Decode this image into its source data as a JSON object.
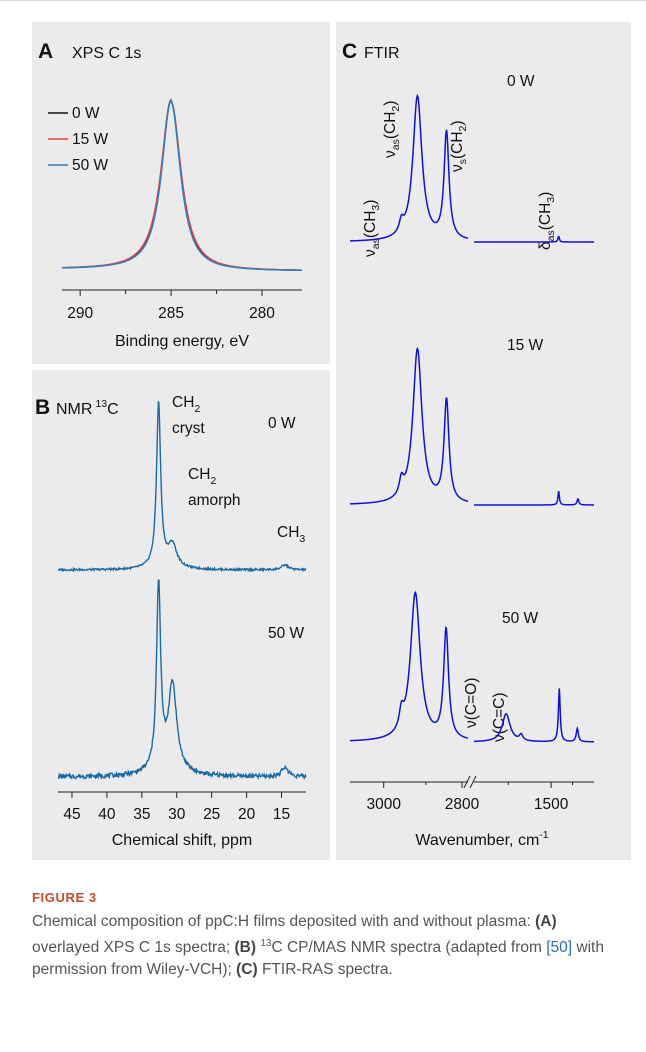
{
  "caption": {
    "label": "FIGURE 3",
    "intro": "Chemical composition of ppC:H films deposited with and without plasma: ",
    "a_tag": "(A)",
    "a_text": " overlayed XPS C 1s spectra; ",
    "b_tag": "(B)",
    "b_sup": "13",
    "b_text": "C CP/MAS NMR spectra (adapted from ",
    "b_ref": "[50]",
    "b_text2": " with permission from Wiley-VCH); ",
    "c_tag": "(C)",
    "c_text": " FTIR-RAS spectra."
  },
  "colors": {
    "panel_bg": "#ebebeb",
    "xps_0W": "#111111",
    "xps_15W": "#e8413a",
    "xps_50W": "#2f7ec4",
    "nmr_line": "#1a6aa5",
    "ftir_line": "#1010e0"
  },
  "chart_data": [
    {
      "panel": "A",
      "type": "line",
      "title": "XPS C 1s",
      "xlabel": "Binding energy, eV",
      "x_reversed": true,
      "xlim": [
        291,
        277.8
      ],
      "xticks": [
        290,
        285,
        280
      ],
      "legend": {
        "placement": "top-left",
        "entries": [
          "0 W",
          "15 W",
          "50 W"
        ]
      },
      "series": [
        {
          "name": "0 W",
          "peak_x": 285.0,
          "fwhm": 1.4,
          "color": "#111111"
        },
        {
          "name": "15 W",
          "peak_x": 285.0,
          "fwhm": 1.45,
          "color": "#e8413a"
        },
        {
          "name": "50 W",
          "peak_x": 285.0,
          "fwhm": 1.35,
          "color": "#2f7ec4"
        }
      ]
    },
    {
      "panel": "B",
      "type": "line",
      "title": "NMR",
      "title_sup": "13",
      "title_suffix": "C",
      "xlabel": "Chemical shift, ppm",
      "x_reversed": true,
      "xlim": [
        47,
        11.5
      ],
      "xticks": [
        45,
        40,
        35,
        30,
        25,
        20,
        15
      ],
      "annotations": [
        {
          "lines": [
            "CH",
            "cryst"
          ],
          "sub": "2"
        },
        {
          "lines": [
            "CH",
            "amorph"
          ],
          "sub": "2"
        },
        {
          "text": "CH",
          "sub": "3"
        }
      ],
      "series": [
        {
          "name": "0 W",
          "peaks": [
            {
              "x": 32.6,
              "rel": 1.0
            },
            {
              "x": 30.6,
              "rel": 0.13
            },
            {
              "x": 14.5,
              "rel": 0.03
            }
          ]
        },
        {
          "name": "50 W",
          "peaks": [
            {
              "x": 32.6,
              "rel": 1.0
            },
            {
              "x": 30.6,
              "rel": 0.46
            },
            {
              "x": 14.5,
              "rel": 0.05
            }
          ]
        }
      ]
    },
    {
      "panel": "C",
      "type": "line",
      "title": "FTIR",
      "xlabel": "Wavenumber, cm",
      "xlabel_sup": "-1",
      "x_broken": true,
      "xlim_left": [
        3080,
        2800
      ],
      "xlim_right": [
        1860,
        1300
      ],
      "xticks": [
        3000,
        2800,
        1500
      ],
      "annotations": [
        {
          "base": "ν",
          "sub": "as",
          "rest": "(CH",
          "sub2": "3",
          "end": ")"
        },
        {
          "base": "ν",
          "sub": "as",
          "rest": "(CH",
          "sub2": "2",
          "end": ")"
        },
        {
          "base": "ν",
          "sub": "s",
          "rest": "(CH",
          "sub2": "2",
          "end": ")"
        },
        {
          "base": "δ",
          "sub": "as",
          "rest": "(CH",
          "sub2": "3",
          "end": ")"
        },
        {
          "text": "ν(C=O)"
        },
        {
          "text": "ν(C=C)"
        }
      ],
      "series": [
        {
          "name": "0 W",
          "peaks": [
            {
              "x": 2958,
              "rel": 0.08
            },
            {
              "x": 2920,
              "rel": 1.0
            },
            {
              "x": 2851,
              "rel": 0.74
            },
            {
              "x": 1465,
              "rel": 0.04
            }
          ]
        },
        {
          "name": "15 W",
          "peaks": [
            {
              "x": 2958,
              "rel": 0.1
            },
            {
              "x": 2920,
              "rel": 1.0
            },
            {
              "x": 2851,
              "rel": 0.66
            },
            {
              "x": 1465,
              "rel": 0.09
            },
            {
              "x": 1375,
              "rel": 0.04
            }
          ]
        },
        {
          "name": "50 W",
          "peaks": [
            {
              "x": 2958,
              "rel": 0.12
            },
            {
              "x": 2925,
              "rel": 1.0
            },
            {
              "x": 2852,
              "rel": 0.74
            },
            {
              "x": 1710,
              "rel": 0.19
            },
            {
              "x": 1640,
              "rel": 0.04
            },
            {
              "x": 1462,
              "rel": 0.36
            },
            {
              "x": 1378,
              "rel": 0.09
            }
          ]
        }
      ]
    }
  ]
}
